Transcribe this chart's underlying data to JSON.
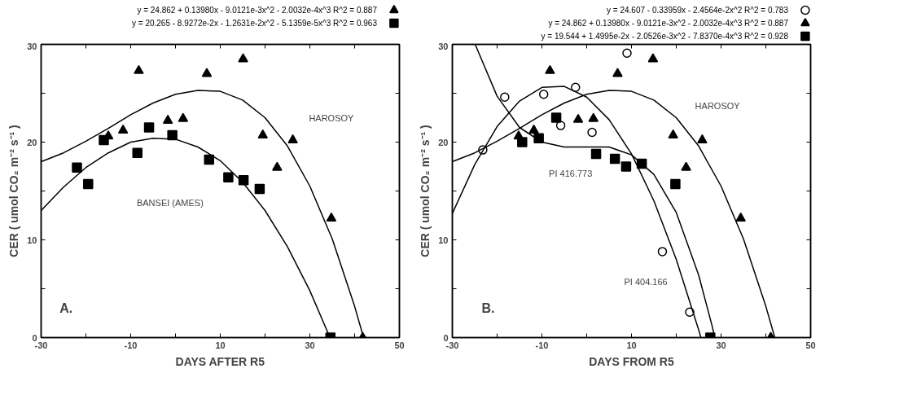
{
  "chart_data": [
    {
      "type": "scatter",
      "xlabel": "DAYS AFTER R5",
      "ylabel": "CER ( umol CO₂ m⁻² s⁻¹ )",
      "xlim": [
        -30,
        50
      ],
      "ylim": [
        0,
        30
      ],
      "xticks": [
        -30,
        {
          "value": -20,
          "label": null
        },
        -10,
        {
          "value": 0,
          "label": null
        },
        10,
        {
          "value": 20,
          "label": null
        },
        30,
        {
          "value": 40,
          "label": null
        },
        50
      ],
      "yticks": [
        0,
        {
          "value": 5,
          "label": null
        },
        10,
        {
          "value": 15,
          "label": null
        },
        20,
        {
          "value": 25,
          "label": null
        },
        30
      ],
      "grid": false,
      "legend": "top right",
      "annotations": [
        "HAROSOY",
        "BANSEI (AMES)",
        "A."
      ],
      "series": [
        {
          "name": "y = 24.862 + 0.13980x - 9.0121e-3x^2 - 2.0032e-4x^3   R^2 = 0.887",
          "type": "scatter",
          "marker": "triangle",
          "color": "#000000",
          "x": [
            -15.0,
            -11.7,
            -8.2,
            -1.7,
            1.7,
            7.0,
            15.1,
            19.5,
            22.7,
            26.2,
            34.8,
            41.8
          ],
          "values": [
            20.6,
            21.2,
            27.3,
            22.2,
            22.4,
            27.0,
            28.5,
            20.7,
            17.4,
            20.2,
            12.2,
            0.0
          ]
        },
        {
          "name": "y = 20.265 - 8.9272e-2x - 1.2631e-2x^2 - 5.1359e-5x^3   R^2 = 0.963",
          "type": "scatter",
          "marker": "square",
          "color": "#000000",
          "x": [
            -22.0,
            -19.5,
            -16.0,
            -8.5,
            -5.9,
            -0.7,
            7.5,
            11.8,
            15.2,
            18.8,
            34.6
          ],
          "values": [
            17.4,
            15.7,
            20.2,
            18.9,
            21.5,
            20.7,
            18.2,
            16.4,
            16.1,
            15.2,
            0.0
          ]
        },
        {
          "type": "line",
          "marker": "none",
          "color": "#000000",
          "x": [
            -30,
            -25,
            -20,
            -15,
            -10,
            -5,
            0,
            5,
            10,
            15,
            20,
            25,
            30,
            35,
            40,
            42
          ],
          "values": [
            18.0,
            18.9,
            20.1,
            21.4,
            22.8,
            24.0,
            24.9,
            25.3,
            25.2,
            24.3,
            22.5,
            19.6,
            15.5,
            10.1,
            3.2,
            0.0
          ]
        },
        {
          "type": "line",
          "marker": "none",
          "color": "#000000",
          "x": [
            -30,
            -25,
            -20,
            -15,
            -10,
            -5,
            0,
            5,
            10,
            15,
            20,
            25,
            30,
            34.5
          ],
          "values": [
            13.0,
            15.4,
            17.4,
            18.9,
            20.0,
            20.4,
            20.3,
            19.5,
            18.1,
            15.9,
            13.0,
            9.3,
            4.8,
            0.0
          ]
        }
      ]
    },
    {
      "type": "scatter",
      "xlabel": "DAYS FROM R5",
      "ylabel": "CER ( umol CO₂ m⁻² s⁻¹ )",
      "xlim": [
        -30,
        50
      ],
      "ylim": [
        0,
        30
      ],
      "xticks": [
        -30,
        {
          "value": -20,
          "label": null
        },
        -10,
        {
          "value": 0,
          "label": null
        },
        10,
        {
          "value": 20,
          "label": null
        },
        30,
        {
          "value": 40,
          "label": null
        },
        50
      ],
      "yticks": [
        0,
        {
          "value": 5,
          "label": null
        },
        10,
        {
          "value": 15,
          "label": null
        },
        20,
        {
          "value": 25,
          "label": null
        },
        30
      ],
      "grid": false,
      "legend": "top right",
      "annotations": [
        "HAROSOY",
        "PI 416.773",
        "PI 404.166",
        "B."
      ],
      "series": [
        {
          "name": "y = 24.607 - 0.33959x - 2.4564e-2x^2   R^2 = 0.783",
          "type": "scatter",
          "marker": "circle",
          "color": "#000000",
          "x": [
            -23.2,
            -18.3,
            -9.6,
            -5.8,
            -2.5,
            1.2,
            9.0,
            16.9,
            23.0
          ],
          "values": [
            19.2,
            24.6,
            24.9,
            21.7,
            25.6,
            21.0,
            29.1,
            8.8,
            2.6
          ]
        },
        {
          "name": "y = 24.862 + 0.13980x - 9.0121e-3x^2 - 2.0032e-4x^3   R^2 = 0.887",
          "type": "scatter",
          "marker": "triangle",
          "color": "#000000",
          "x": [
            -15.2,
            -11.8,
            -8.2,
            -1.9,
            1.5,
            6.9,
            14.8,
            19.3,
            22.2,
            25.8,
            34.4,
            41.1
          ],
          "values": [
            20.6,
            21.2,
            27.3,
            22.3,
            22.4,
            27.0,
            28.5,
            20.7,
            17.4,
            20.2,
            12.2,
            0.0
          ]
        },
        {
          "name": "y = 19.544 + 1.4995e-2x - 2.0526e-3x^2 - 7.8370e-4x^3   R^2 = 0.928",
          "type": "scatter",
          "marker": "square",
          "color": "#000000",
          "x": [
            -14.4,
            -10.7,
            -6.8,
            2.1,
            6.3,
            8.8,
            12.3,
            19.8,
            27.6
          ],
          "values": [
            20.0,
            20.4,
            22.5,
            18.8,
            18.3,
            17.5,
            17.8,
            15.7,
            0.0
          ]
        },
        {
          "type": "line",
          "marker": "none",
          "color": "#000000",
          "x": [
            -30,
            -25,
            -20,
            -15,
            -10,
            -5,
            0,
            5,
            10,
            15,
            20,
            25,
            25.5
          ],
          "values": [
            12.7,
            17.7,
            21.6,
            24.2,
            25.6,
            25.7,
            24.6,
            22.3,
            18.8,
            14.0,
            8.0,
            0.8,
            0.0
          ]
        },
        {
          "type": "line",
          "marker": "none",
          "color": "#000000",
          "x": [
            -30,
            -25,
            -20,
            -15,
            -10,
            -5,
            0,
            5,
            10,
            15,
            20,
            25,
            30,
            35,
            40,
            42
          ],
          "values": [
            18.0,
            18.9,
            20.1,
            21.4,
            22.8,
            24.0,
            24.9,
            25.3,
            25.2,
            24.3,
            22.5,
            19.6,
            15.5,
            10.1,
            3.2,
            0.0
          ]
        },
        {
          "type": "line",
          "marker": "none",
          "color": "#000000",
          "x": [
            -24.9,
            -20,
            -15,
            -10,
            -5,
            0,
            5,
            10,
            15,
            20,
            25,
            28,
            28.6
          ],
          "values": [
            30.0,
            24.7,
            21.5,
            20.0,
            19.5,
            19.5,
            19.5,
            18.7,
            16.7,
            12.8,
            6.4,
            1.2,
            0.0
          ]
        }
      ]
    }
  ]
}
